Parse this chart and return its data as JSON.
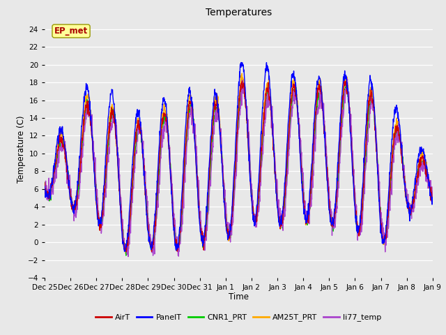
{
  "title": "Temperatures",
  "xlabel": "Time",
  "ylabel": "Temperature (C)",
  "ylim": [
    -4,
    25
  ],
  "yticks": [
    -4,
    -2,
    0,
    2,
    4,
    6,
    8,
    10,
    12,
    14,
    16,
    18,
    20,
    22,
    24
  ],
  "xtick_labels": [
    "Dec 25",
    "Dec 26",
    "Dec 27",
    "Dec 28",
    "Dec 29",
    "Dec 30",
    "Dec 31",
    "Jan 1",
    "Jan 2",
    "Jan 3",
    "Jan 4",
    "Jan 5",
    "Jan 6",
    "Jan 7",
    "Jan 8",
    "Jan 9"
  ],
  "series": {
    "AirT": {
      "color": "#cc0000",
      "lw": 1.0
    },
    "PanelT": {
      "color": "#0000ff",
      "lw": 1.0
    },
    "CNR1_PRT": {
      "color": "#00cc00",
      "lw": 1.0
    },
    "AM25T_PRT": {
      "color": "#ffaa00",
      "lw": 1.0
    },
    "li77_temp": {
      "color": "#aa44cc",
      "lw": 1.0
    }
  },
  "annotation_text": "EP_met",
  "annotation_color": "#aa0000",
  "annotation_bg": "#ffff99",
  "annotation_edge": "#999900",
  "fig_bg": "#e8e8e8",
  "plot_bg": "#e8e8e8",
  "grid_color": "#ffffff",
  "n_points": 1440
}
